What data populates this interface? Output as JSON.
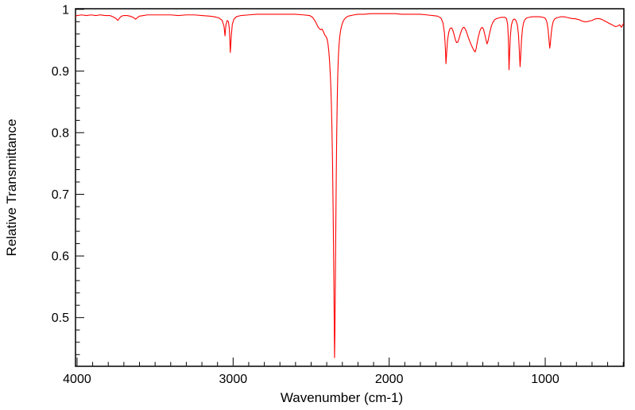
{
  "figure": {
    "background_color": "#ffffff",
    "axis_color": "#000000",
    "curve_color": "#ff0000"
  },
  "chart_data": {
    "type": "line",
    "title": "",
    "xlabel": "Wavenumber (cm-1)",
    "ylabel": "Relative Transmittance",
    "grid": false,
    "legend": "none",
    "description": "Infrared transmittance spectrum, single red trace on white, axes box with inward ticks, x-axis reversed",
    "x_axis": {
      "label": "Wavenumber (cm-1)",
      "reversed": true,
      "left_value": 4010,
      "right_value": 496,
      "major_ticks": [
        4000,
        3000,
        2000,
        1000
      ],
      "tick_labels": [
        "4000",
        "3000",
        "2000",
        "1000"
      ],
      "minor_start": 3900,
      "minor_end": 500,
      "minor_step": 100
    },
    "y_axis": {
      "label": "Relative Transmittance",
      "top_value": 1.001,
      "bottom_value": 0.421,
      "major_ticks": [
        1.0,
        0.9,
        0.8,
        0.7,
        0.6,
        0.5
      ],
      "tick_labels": [
        "1",
        "0.9",
        "0.8",
        "0.7",
        "0.6",
        "0.5"
      ],
      "minor_start": 0.98,
      "minor_end": 0.44,
      "minor_step": 0.02
    },
    "series": [
      {
        "name": "ir-spectrum",
        "color": "#ff0000",
        "points": [
          [
            4008,
            0.989
          ],
          [
            4000,
            0.99
          ],
          [
            3970,
            0.991
          ],
          [
            3940,
            0.99
          ],
          [
            3910,
            0.991
          ],
          [
            3880,
            0.99
          ],
          [
            3850,
            0.991
          ],
          [
            3820,
            0.99
          ],
          [
            3790,
            0.99
          ],
          [
            3770,
            0.988
          ],
          [
            3750,
            0.985
          ],
          [
            3738,
            0.982
          ],
          [
            3728,
            0.986
          ],
          [
            3715,
            0.989
          ],
          [
            3700,
            0.99
          ],
          [
            3680,
            0.99
          ],
          [
            3660,
            0.989
          ],
          [
            3640,
            0.987
          ],
          [
            3625,
            0.984
          ],
          [
            3612,
            0.987
          ],
          [
            3600,
            0.989
          ],
          [
            3575,
            0.99
          ],
          [
            3550,
            0.991
          ],
          [
            3500,
            0.991
          ],
          [
            3450,
            0.991
          ],
          [
            3400,
            0.991
          ],
          [
            3350,
            0.99
          ],
          [
            3300,
            0.991
          ],
          [
            3250,
            0.991
          ],
          [
            3200,
            0.99
          ],
          [
            3150,
            0.989
          ],
          [
            3120,
            0.988
          ],
          [
            3090,
            0.986
          ],
          [
            3070,
            0.982
          ],
          [
            3058,
            0.972
          ],
          [
            3052,
            0.957
          ],
          [
            3046,
            0.975
          ],
          [
            3038,
            0.982
          ],
          [
            3030,
            0.98
          ],
          [
            3024,
            0.968
          ],
          [
            3018,
            0.93
          ],
          [
            3012,
            0.956
          ],
          [
            3005,
            0.976
          ],
          [
            2995,
            0.984
          ],
          [
            2980,
            0.988
          ],
          [
            2950,
            0.99
          ],
          [
            2900,
            0.991
          ],
          [
            2850,
            0.992
          ],
          [
            2800,
            0.992
          ],
          [
            2750,
            0.992
          ],
          [
            2700,
            0.992
          ],
          [
            2650,
            0.992
          ],
          [
            2600,
            0.992
          ],
          [
            2550,
            0.991
          ],
          [
            2510,
            0.99
          ],
          [
            2490,
            0.987
          ],
          [
            2470,
            0.979
          ],
          [
            2455,
            0.971
          ],
          [
            2440,
            0.967
          ],
          [
            2430,
            0.968
          ],
          [
            2420,
            0.963
          ],
          [
            2412,
            0.958
          ],
          [
            2405,
            0.956
          ],
          [
            2398,
            0.952
          ],
          [
            2392,
            0.944
          ],
          [
            2386,
            0.93
          ],
          [
            2381,
            0.912
          ],
          [
            2376,
            0.888
          ],
          [
            2371,
            0.853
          ],
          [
            2367,
            0.81
          ],
          [
            2363,
            0.752
          ],
          [
            2359,
            0.672
          ],
          [
            2355,
            0.575
          ],
          [
            2352,
            0.49
          ],
          [
            2350,
            0.435
          ],
          [
            2348,
            0.47
          ],
          [
            2345,
            0.555
          ],
          [
            2342,
            0.645
          ],
          [
            2339,
            0.728
          ],
          [
            2336,
            0.798
          ],
          [
            2333,
            0.85
          ],
          [
            2330,
            0.888
          ],
          [
            2326,
            0.92
          ],
          [
            2322,
            0.94
          ],
          [
            2317,
            0.955
          ],
          [
            2311,
            0.966
          ],
          [
            2304,
            0.974
          ],
          [
            2296,
            0.98
          ],
          [
            2287,
            0.984
          ],
          [
            2276,
            0.987
          ],
          [
            2262,
            0.989
          ],
          [
            2245,
            0.99
          ],
          [
            2225,
            0.991
          ],
          [
            2200,
            0.992
          ],
          [
            2160,
            0.992
          ],
          [
            2120,
            0.993
          ],
          [
            2080,
            0.993
          ],
          [
            2040,
            0.993
          ],
          [
            2000,
            0.993
          ],
          [
            1960,
            0.993
          ],
          [
            1920,
            0.992
          ],
          [
            1880,
            0.992
          ],
          [
            1840,
            0.992
          ],
          [
            1800,
            0.992
          ],
          [
            1760,
            0.991
          ],
          [
            1720,
            0.99
          ],
          [
            1690,
            0.989
          ],
          [
            1668,
            0.986
          ],
          [
            1655,
            0.978
          ],
          [
            1646,
            0.962
          ],
          [
            1640,
            0.938
          ],
          [
            1636,
            0.912
          ],
          [
            1632,
            0.928
          ],
          [
            1626,
            0.95
          ],
          [
            1618,
            0.963
          ],
          [
            1610,
            0.969
          ],
          [
            1600,
            0.97
          ],
          [
            1592,
            0.966
          ],
          [
            1584,
            0.959
          ],
          [
            1576,
            0.951
          ],
          [
            1568,
            0.946
          ],
          [
            1560,
            0.947
          ],
          [
            1552,
            0.953
          ],
          [
            1544,
            0.96
          ],
          [
            1536,
            0.966
          ],
          [
            1528,
            0.97
          ],
          [
            1520,
            0.971
          ],
          [
            1512,
            0.968
          ],
          [
            1504,
            0.963
          ],
          [
            1496,
            0.957
          ],
          [
            1488,
            0.951
          ],
          [
            1480,
            0.946
          ],
          [
            1472,
            0.941
          ],
          [
            1464,
            0.937
          ],
          [
            1456,
            0.933
          ],
          [
            1449,
            0.931
          ],
          [
            1443,
            0.936
          ],
          [
            1436,
            0.946
          ],
          [
            1428,
            0.956
          ],
          [
            1420,
            0.964
          ],
          [
            1412,
            0.969
          ],
          [
            1404,
            0.971
          ],
          [
            1396,
            0.968
          ],
          [
            1388,
            0.96
          ],
          [
            1380,
            0.951
          ],
          [
            1373,
            0.944
          ],
          [
            1367,
            0.948
          ],
          [
            1360,
            0.957
          ],
          [
            1352,
            0.966
          ],
          [
            1344,
            0.974
          ],
          [
            1335,
            0.979
          ],
          [
            1325,
            0.983
          ],
          [
            1312,
            0.985
          ],
          [
            1298,
            0.986
          ],
          [
            1284,
            0.987
          ],
          [
            1270,
            0.987
          ],
          [
            1258,
            0.987
          ],
          [
            1248,
            0.985
          ],
          [
            1241,
            0.976
          ],
          [
            1236,
            0.952
          ],
          [
            1232,
            0.902
          ],
          [
            1228,
            0.93
          ],
          [
            1223,
            0.958
          ],
          [
            1217,
            0.974
          ],
          [
            1210,
            0.981
          ],
          [
            1202,
            0.984
          ],
          [
            1194,
            0.984
          ],
          [
            1186,
            0.981
          ],
          [
            1178,
            0.974
          ],
          [
            1171,
            0.958
          ],
          [
            1165,
            0.928
          ],
          [
            1161,
            0.907
          ],
          [
            1157,
            0.925
          ],
          [
            1152,
            0.95
          ],
          [
            1146,
            0.968
          ],
          [
            1139,
            0.978
          ],
          [
            1131,
            0.983
          ],
          [
            1120,
            0.986
          ],
          [
            1105,
            0.987
          ],
          [
            1085,
            0.988
          ],
          [
            1060,
            0.988
          ],
          [
            1035,
            0.988
          ],
          [
            1012,
            0.987
          ],
          [
            998,
            0.985
          ],
          [
            989,
            0.979
          ],
          [
            982,
            0.968
          ],
          [
            976,
            0.951
          ],
          [
            971,
            0.937
          ],
          [
            967,
            0.945
          ],
          [
            962,
            0.96
          ],
          [
            956,
            0.972
          ],
          [
            949,
            0.98
          ],
          [
            941,
            0.984
          ],
          [
            930,
            0.986
          ],
          [
            915,
            0.987
          ],
          [
            898,
            0.988
          ],
          [
            880,
            0.988
          ],
          [
            862,
            0.987
          ],
          [
            845,
            0.986
          ],
          [
            828,
            0.985
          ],
          [
            812,
            0.985
          ],
          [
            796,
            0.984
          ],
          [
            780,
            0.983
          ],
          [
            764,
            0.981
          ],
          [
            748,
            0.98
          ],
          [
            732,
            0.98
          ],
          [
            716,
            0.981
          ],
          [
            700,
            0.982
          ],
          [
            685,
            0.984
          ],
          [
            670,
            0.985
          ],
          [
            655,
            0.985
          ],
          [
            640,
            0.984
          ],
          [
            625,
            0.982
          ],
          [
            610,
            0.98
          ],
          [
            595,
            0.978
          ],
          [
            580,
            0.976
          ],
          [
            565,
            0.974
          ],
          [
            550,
            0.972
          ],
          [
            535,
            0.973
          ],
          [
            522,
            0.975
          ],
          [
            512,
            0.971
          ],
          [
            505,
            0.974
          ],
          [
            498,
            0.977
          ]
        ]
      }
    ]
  }
}
